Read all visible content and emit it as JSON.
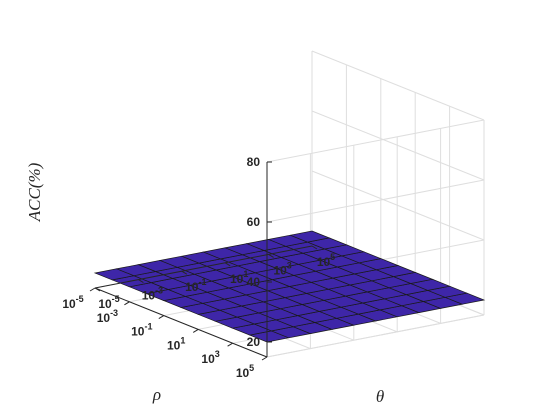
{
  "chart_data": {
    "type": "surface3d",
    "title": "",
    "zlabel": "ACC(%)",
    "xlabel": "θ",
    "ylabel": "ρ",
    "zlim": [
      15,
      80
    ],
    "z_ticks": [
      "20",
      "40",
      "60",
      "80"
    ],
    "theta_ticks": [
      {
        "base": "10",
        "exp": "-5"
      },
      {
        "base": "10",
        "exp": "-3"
      },
      {
        "base": "10",
        "exp": "-1"
      },
      {
        "base": "10",
        "exp": "1"
      },
      {
        "base": "10",
        "exp": "3"
      },
      {
        "base": "10",
        "exp": "5"
      }
    ],
    "rho_ticks": [
      {
        "base": "10",
        "exp": "5"
      },
      {
        "base": "10",
        "exp": "3"
      },
      {
        "base": "10",
        "exp": "1"
      },
      {
        "base": "10",
        "exp": "-1"
      },
      {
        "base": "10",
        "exp": "-3"
      },
      {
        "base": "10",
        "exp": "-5"
      }
    ],
    "theta_exponents": [
      -5,
      -4,
      -3,
      -2,
      -1,
      0,
      1,
      2,
      3,
      4,
      5
    ],
    "rho_exponents": [
      5,
      4,
      3,
      2,
      1,
      0,
      -1,
      -2,
      -3,
      -4,
      -5
    ],
    "grid": true,
    "colormap": [
      "#3E26A8",
      "#15B0D6",
      "#E7BC32",
      "#F9D42A"
    ],
    "z_values": [
      [
        20,
        20,
        20,
        20,
        20,
        20,
        20,
        20,
        20,
        20,
        20
      ],
      [
        20,
        20,
        20,
        20,
        20,
        20,
        20,
        20,
        20,
        20,
        20
      ],
      [
        20,
        20,
        20,
        20,
        20,
        20,
        20,
        20,
        20,
        20,
        20
      ],
      [
        20,
        20,
        20,
        20,
        20,
        20,
        20,
        20,
        20,
        20,
        20
      ],
      [
        20,
        20,
        20,
        20,
        20,
        20,
        20,
        20,
        20,
        20,
        20
      ],
      [
        20,
        20,
        20,
        20,
        20,
        20,
        20,
        20,
        20,
        20,
        20
      ],
      [
        20,
        20,
        20,
        20,
        20,
        20,
        20,
        20,
        20,
        20,
        20
      ],
      [
        20,
        20,
        20,
        20,
        20,
        20,
        20,
        20,
        20,
        20,
        20
      ],
      [
        20,
        20,
        20,
        20,
        20,
        20,
        20,
        20,
        20,
        20,
        20
      ],
      [
        20,
        20,
        20,
        20,
        20,
        20,
        20,
        20,
        20,
        20,
        20
      ],
      [
        20,
        20,
        20,
        20,
        20,
        20,
        20,
        20,
        20,
        20,
        20
      ]
    ]
  }
}
